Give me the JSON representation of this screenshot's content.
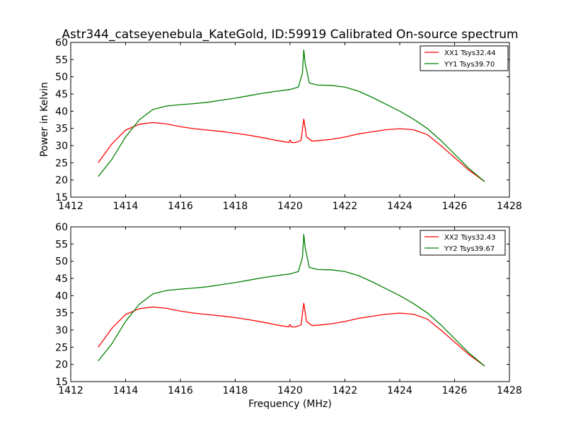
{
  "figure": {
    "title": "Astr344_catseyenebula_KateGold, ID:59919 Calibrated On-source spectrum",
    "xlabel": "Frequency (MHz)",
    "ylabel": "Power in Kelvin"
  },
  "chart_data": [
    {
      "type": "line",
      "xlim": [
        1412,
        1428
      ],
      "ylim": [
        15,
        60
      ],
      "xticks": [
        1412,
        1414,
        1416,
        1418,
        1420,
        1422,
        1424,
        1426,
        1428
      ],
      "yticks": [
        15,
        20,
        25,
        30,
        35,
        40,
        45,
        50,
        55,
        60
      ],
      "legend": "top-right",
      "series": [
        {
          "name": "XX1 Tsys32.44",
          "color": "#ff0000",
          "x": [
            1413.0,
            1413.5,
            1414.0,
            1414.5,
            1415.0,
            1415.5,
            1416.0,
            1416.5,
            1417.0,
            1417.5,
            1418.0,
            1418.5,
            1419.0,
            1419.5,
            1419.95,
            1420.0,
            1420.05,
            1420.2,
            1420.4,
            1420.5,
            1420.6,
            1420.8,
            1421.0,
            1421.5,
            1422.0,
            1422.5,
            1423.0,
            1423.5,
            1424.0,
            1424.5,
            1425.0,
            1425.5,
            1426.0,
            1426.5,
            1427.1
          ],
          "y": [
            25.0,
            30.5,
            34.5,
            36.2,
            36.7,
            36.3,
            35.5,
            34.9,
            34.5,
            34.1,
            33.6,
            33.0,
            32.3,
            31.5,
            30.9,
            31.6,
            30.9,
            30.9,
            31.5,
            37.7,
            32.5,
            31.3,
            31.4,
            31.8,
            32.5,
            33.4,
            34.0,
            34.6,
            34.9,
            34.6,
            33.2,
            30.0,
            26.5,
            23.0,
            19.5
          ]
        },
        {
          "name": "YY1 Tsys39.70",
          "color": "#008000",
          "x": [
            1413.0,
            1413.5,
            1414.0,
            1414.5,
            1415.0,
            1415.5,
            1416.0,
            1416.5,
            1417.0,
            1417.5,
            1418.0,
            1418.5,
            1419.0,
            1419.5,
            1420.0,
            1420.3,
            1420.45,
            1420.5,
            1420.55,
            1420.7,
            1421.0,
            1421.5,
            1422.0,
            1422.5,
            1423.0,
            1423.5,
            1424.0,
            1424.5,
            1425.0,
            1425.5,
            1426.0,
            1426.5,
            1427.1
          ],
          "y": [
            21.0,
            26.0,
            32.5,
            37.5,
            40.5,
            41.5,
            41.9,
            42.2,
            42.6,
            43.2,
            43.8,
            44.5,
            45.2,
            45.8,
            46.3,
            47.0,
            51.0,
            57.8,
            54.0,
            48.2,
            47.6,
            47.5,
            47.0,
            45.8,
            44.0,
            42.0,
            40.0,
            37.7,
            35.0,
            31.5,
            27.5,
            23.5,
            19.5
          ]
        }
      ]
    },
    {
      "type": "line",
      "xlim": [
        1412,
        1428
      ],
      "ylim": [
        15,
        60
      ],
      "xticks": [
        1412,
        1414,
        1416,
        1418,
        1420,
        1422,
        1424,
        1426,
        1428
      ],
      "yticks": [
        15,
        20,
        25,
        30,
        35,
        40,
        45,
        50,
        55,
        60
      ],
      "legend": "top-right",
      "series": [
        {
          "name": "XX2 Tsys32.43",
          "color": "#ff0000",
          "x": [
            1413.0,
            1413.5,
            1414.0,
            1414.5,
            1415.0,
            1415.5,
            1416.0,
            1416.5,
            1417.0,
            1417.5,
            1418.0,
            1418.5,
            1419.0,
            1419.5,
            1419.95,
            1420.0,
            1420.05,
            1420.2,
            1420.4,
            1420.5,
            1420.6,
            1420.8,
            1421.0,
            1421.5,
            1422.0,
            1422.5,
            1423.0,
            1423.5,
            1424.0,
            1424.5,
            1425.0,
            1425.5,
            1426.0,
            1426.5,
            1427.1
          ],
          "y": [
            25.0,
            30.5,
            34.5,
            36.2,
            36.7,
            36.3,
            35.5,
            34.9,
            34.5,
            34.1,
            33.6,
            33.0,
            32.3,
            31.5,
            30.9,
            31.6,
            30.9,
            30.9,
            31.5,
            37.8,
            32.5,
            31.3,
            31.4,
            31.8,
            32.5,
            33.4,
            34.0,
            34.6,
            34.9,
            34.6,
            33.2,
            30.0,
            26.5,
            23.0,
            19.5
          ]
        },
        {
          "name": "YY2 Tsys39.67",
          "color": "#008000",
          "x": [
            1413.0,
            1413.5,
            1414.0,
            1414.5,
            1415.0,
            1415.5,
            1416.0,
            1416.5,
            1417.0,
            1417.5,
            1418.0,
            1418.5,
            1419.0,
            1419.5,
            1420.0,
            1420.3,
            1420.45,
            1420.5,
            1420.55,
            1420.7,
            1421.0,
            1421.5,
            1422.0,
            1422.5,
            1423.0,
            1423.5,
            1424.0,
            1424.5,
            1425.0,
            1425.5,
            1426.0,
            1426.5,
            1427.1
          ],
          "y": [
            21.0,
            26.0,
            32.5,
            37.5,
            40.5,
            41.5,
            41.9,
            42.2,
            42.6,
            43.2,
            43.8,
            44.5,
            45.2,
            45.8,
            46.3,
            47.0,
            51.0,
            57.8,
            54.0,
            48.2,
            47.6,
            47.5,
            47.0,
            45.8,
            44.0,
            42.0,
            40.0,
            37.7,
            35.0,
            31.5,
            27.5,
            23.5,
            19.5
          ]
        }
      ]
    }
  ]
}
